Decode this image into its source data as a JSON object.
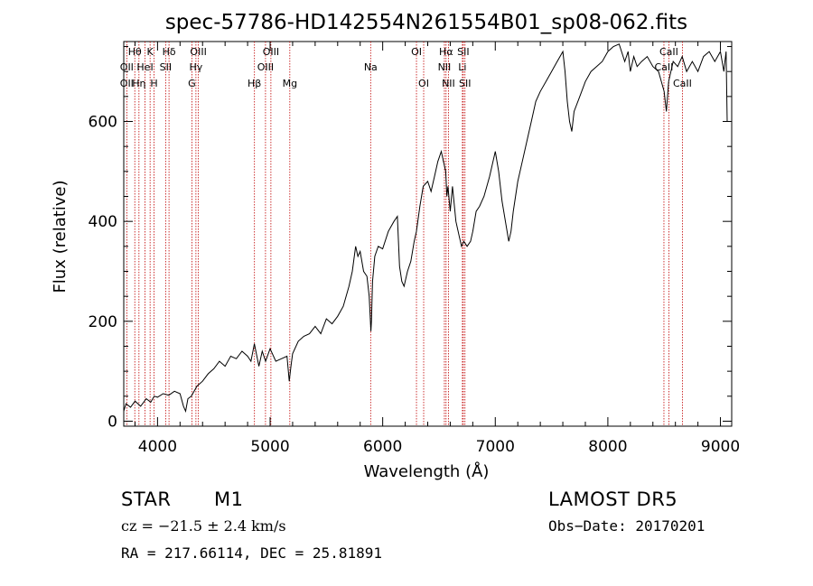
{
  "chart_data": {
    "type": "line",
    "title": "spec-57786-HD142554N261554B01_sp08-062.fits",
    "xlabel": "Wavelength (Å)",
    "ylabel": "Flux (relative)",
    "xlim": [
      3700,
      9100
    ],
    "ylim": [
      -10,
      760
    ],
    "xticks": [
      4000,
      5000,
      6000,
      7000,
      8000,
      9000
    ],
    "yticks": [
      0,
      200,
      400,
      600
    ],
    "grid": false,
    "series": [
      {
        "x": [
          3700,
          3720,
          3760,
          3800,
          3850,
          3900,
          3940,
          3970,
          4000,
          4050,
          4100,
          4150,
          4200,
          4230,
          4250,
          4270,
          4300,
          4350,
          4400,
          4450,
          4500,
          4550,
          4600,
          4650,
          4700,
          4750,
          4800,
          4830,
          4860,
          4900,
          4930,
          4960,
          5000,
          5050,
          5100,
          5150,
          5170,
          5185,
          5200,
          5250,
          5300,
          5350,
          5400,
          5450,
          5500,
          5550,
          5600,
          5650,
          5700,
          5730,
          5760,
          5780,
          5800,
          5830,
          5860,
          5880,
          5895,
          5900,
          5910,
          5930,
          5960,
          6000,
          6050,
          6100,
          6130,
          6150,
          6170,
          6190,
          6220,
          6250,
          6280,
          6300,
          6330,
          6360,
          6400,
          6430,
          6460,
          6490,
          6520,
          6540,
          6560,
          6570,
          6580,
          6600,
          6620,
          6650,
          6680,
          6700,
          6720,
          6750,
          6780,
          6800,
          6830,
          6860,
          6900,
          6950,
          7000,
          7030,
          7060,
          7090,
          7120,
          7140,
          7160,
          7180,
          7200,
          7240,
          7280,
          7320,
          7360,
          7400,
          7450,
          7500,
          7550,
          7600,
          7620,
          7640,
          7660,
          7680,
          7700,
          7750,
          7800,
          7850,
          7900,
          7950,
          8000,
          8050,
          8100,
          8150,
          8180,
          8200,
          8230,
          8260,
          8300,
          8350,
          8400,
          8450,
          8500,
          8520,
          8540,
          8560,
          8580,
          8620,
          8660,
          8700,
          8750,
          8800,
          8850,
          8900,
          8950,
          9000,
          9030,
          9040,
          9050,
          9060
        ],
        "y": [
          20,
          35,
          28,
          40,
          30,
          45,
          38,
          50,
          48,
          55,
          52,
          60,
          55,
          30,
          20,
          45,
          50,
          70,
          80,
          95,
          105,
          120,
          110,
          130,
          125,
          140,
          130,
          120,
          155,
          110,
          140,
          120,
          145,
          120,
          125,
          130,
          80,
          110,
          135,
          160,
          170,
          175,
          190,
          175,
          205,
          195,
          210,
          230,
          270,
          300,
          350,
          330,
          340,
          300,
          290,
          250,
          180,
          200,
          280,
          330,
          350,
          345,
          380,
          400,
          410,
          310,
          280,
          270,
          300,
          320,
          360,
          380,
          430,
          470,
          480,
          460,
          490,
          520,
          540,
          520,
          500,
          450,
          470,
          420,
          470,
          400,
          370,
          350,
          360,
          350,
          360,
          380,
          420,
          430,
          450,
          490,
          540,
          500,
          440,
          400,
          360,
          380,
          420,
          450,
          480,
          520,
          560,
          600,
          640,
          660,
          680,
          700,
          720,
          740,
          700,
          640,
          600,
          580,
          620,
          650,
          680,
          700,
          710,
          720,
          740,
          750,
          755,
          720,
          740,
          700,
          730,
          710,
          720,
          730,
          710,
          700,
          660,
          620,
          680,
          700,
          720,
          710,
          730,
          700,
          720,
          700,
          730,
          740,
          720,
          740,
          700,
          720,
          740,
          600
        ]
      }
    ],
    "lines": [
      {
        "label": "Hθ",
        "x": 3798,
        "row": 0
      },
      {
        "label": "K",
        "x": 3934,
        "row": 0
      },
      {
        "label": "Hδ",
        "x": 4102,
        "row": 0
      },
      {
        "label": "OIII",
        "x": 4363,
        "row": 0
      },
      {
        "label": "OIII",
        "x": 5007,
        "row": 0
      },
      {
        "label": "OI",
        "x": 6300,
        "row": 0
      },
      {
        "label": "Hα",
        "x": 6563,
        "row": 0
      },
      {
        "label": "SII",
        "x": 6716,
        "row": 0
      },
      {
        "label": "CaII",
        "x": 8542,
        "row": 0
      },
      {
        "label": "OII",
        "x": 3727,
        "row": 1
      },
      {
        "label": "HeI",
        "x": 3889,
        "row": 1
      },
      {
        "label": "SII",
        "x": 4072,
        "row": 1
      },
      {
        "label": "Hγ",
        "x": 4341,
        "row": 1
      },
      {
        "label": "OIII",
        "x": 4959,
        "row": 1
      },
      {
        "label": "Na",
        "x": 5893,
        "row": 1
      },
      {
        "label": "NII",
        "x": 6548,
        "row": 1
      },
      {
        "label": "Li",
        "x": 6708,
        "row": 1
      },
      {
        "label": "CaII",
        "x": 8498,
        "row": 1
      },
      {
        "label": "OII",
        "x": 3727,
        "row": 2
      },
      {
        "label": "Hη",
        "x": 3835,
        "row": 2
      },
      {
        "label": "H",
        "x": 3969,
        "row": 2
      },
      {
        "label": "G",
        "x": 4305,
        "row": 2
      },
      {
        "label": "Hβ",
        "x": 4861,
        "row": 2
      },
      {
        "label": "Mg",
        "x": 5175,
        "row": 2
      },
      {
        "label": "OI",
        "x": 6364,
        "row": 2
      },
      {
        "label": "NII",
        "x": 6584,
        "row": 2
      },
      {
        "label": "SII",
        "x": 6731,
        "row": 2
      },
      {
        "label": "CaII",
        "x": 8662,
        "row": 2
      }
    ]
  },
  "info": {
    "object_type": "STAR",
    "subclass": "M1",
    "survey": "LAMOST  DR5",
    "cz": "cz = −21.5 ± 2.4 km/s",
    "obs_date": "Obs−Date: 20170201",
    "radec": "RA = 217.66114, DEC =  25.81891"
  }
}
